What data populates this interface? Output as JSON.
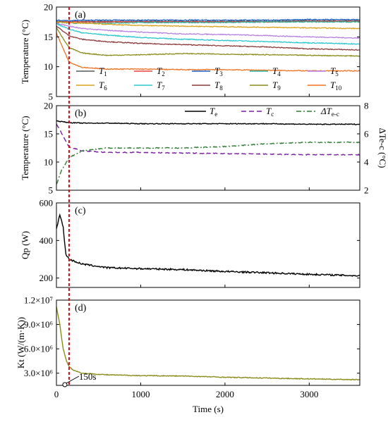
{
  "chart_data": [
    {
      "panel": "(a)",
      "type": "line",
      "ylabel": "Temperature (°C)",
      "xlim": [
        0,
        3600
      ],
      "ylim": [
        5,
        20
      ],
      "yticks": [
        "5",
        "10",
        "15",
        "20"
      ],
      "legend_placement": "bottom (5 columns, 2 rows)",
      "series": [
        {
          "name": "T1",
          "color": "#595959",
          "x": [
            0,
            150,
            300,
            600,
            1000,
            1500,
            2000,
            2500,
            3000,
            3600
          ],
          "y": [
            17.6,
            17.5,
            17.6,
            17.6,
            17.6,
            17.6,
            17.6,
            17.6,
            17.7,
            17.7
          ]
        },
        {
          "name": "T2",
          "color": "#e8413a",
          "x": [
            0,
            150,
            300,
            600,
            1000,
            1500,
            2000,
            2500,
            3000,
            3600
          ],
          "y": [
            17.4,
            17.5,
            17.5,
            17.5,
            17.5,
            17.5,
            17.5,
            17.5,
            17.6,
            17.6
          ]
        },
        {
          "name": "T3",
          "color": "#1f5fbf",
          "x": [
            0,
            150,
            300,
            600,
            1000,
            1500,
            2000,
            2500,
            3000,
            3600
          ],
          "y": [
            17.8,
            17.7,
            17.8,
            17.8,
            17.8,
            17.8,
            17.8,
            17.8,
            17.9,
            17.9
          ]
        },
        {
          "name": "T4",
          "color": "#2bb39e",
          "x": [
            0,
            150,
            300,
            600,
            1000,
            1500,
            2000,
            2500,
            3000,
            3600
          ],
          "y": [
            17.5,
            17.3,
            17.3,
            17.3,
            17.4,
            17.4,
            17.4,
            17.5,
            17.5,
            17.5
          ]
        },
        {
          "name": "T5",
          "color": "#b67fe0",
          "x": [
            0,
            150,
            300,
            600,
            1000,
            1500,
            2000,
            2500,
            3000,
            3600
          ],
          "y": [
            17.3,
            16.8,
            16.4,
            16.1,
            15.8,
            15.5,
            15.4,
            15.2,
            15.0,
            14.8
          ]
        },
        {
          "name": "T6",
          "color": "#d9a21b",
          "x": [
            0,
            150,
            300,
            600,
            1000,
            1500,
            2000,
            2500,
            3000,
            3600
          ],
          "y": [
            17.5,
            17.4,
            17.3,
            17.1,
            16.9,
            16.8,
            16.7,
            16.6,
            16.5,
            16.4
          ]
        },
        {
          "name": "T7",
          "color": "#27c7cf",
          "x": [
            0,
            150,
            300,
            600,
            1000,
            1500,
            2000,
            2500,
            3000,
            3600
          ],
          "y": [
            17.2,
            16.3,
            15.7,
            15.3,
            14.9,
            14.6,
            14.4,
            14.2,
            14.0,
            13.8
          ]
        },
        {
          "name": "T8",
          "color": "#8c3a3a",
          "x": [
            0,
            150,
            300,
            600,
            1000,
            1500,
            2000,
            2500,
            3000,
            3600
          ],
          "y": [
            16.8,
            15.2,
            14.6,
            14.2,
            13.9,
            13.7,
            13.5,
            13.3,
            13.0,
            12.8
          ]
        },
        {
          "name": "T9",
          "color": "#8c8c1c",
          "x": [
            0,
            150,
            300,
            600,
            1000,
            1500,
            2000,
            2500,
            3000,
            3600
          ],
          "y": [
            16.5,
            13.2,
            12.3,
            11.9,
            12.0,
            12.2,
            12.1,
            12.0,
            11.9,
            11.8
          ]
        },
        {
          "name": "T10",
          "color": "#f07020",
          "x": [
            0,
            150,
            300,
            600,
            1000,
            1500,
            2000,
            2500,
            3000,
            3600
          ],
          "y": [
            15.6,
            10.8,
            9.9,
            9.6,
            9.6,
            9.5,
            9.5,
            9.4,
            9.3,
            9.3
          ]
        }
      ]
    },
    {
      "panel": "(b)",
      "type": "line",
      "ylabel": "Temperature (°C)",
      "y2label": "ΔTe-c (°C)",
      "xlim": [
        0,
        3600
      ],
      "ylim": [
        5,
        20
      ],
      "y2lim": [
        2,
        8
      ],
      "yticks": [
        "5",
        "10",
        "15",
        "20"
      ],
      "y2ticks": [
        "2",
        "4",
        "6",
        "8"
      ],
      "legend_placement": "top",
      "series": [
        {
          "name": "Te",
          "axis": "left",
          "style": "solid",
          "color": "#000000",
          "x": [
            0,
            150,
            300,
            600,
            1000,
            1500,
            2000,
            2500,
            3000,
            3600
          ],
          "y": [
            17.3,
            17.0,
            16.9,
            16.9,
            16.8,
            16.8,
            16.8,
            16.8,
            16.7,
            16.7
          ]
        },
        {
          "name": "Tc",
          "axis": "left",
          "style": "dash",
          "color": "#7b1fa2",
          "x": [
            0,
            150,
            300,
            600,
            1000,
            1500,
            2000,
            2500,
            3000,
            3600
          ],
          "y": [
            16.8,
            12.7,
            12.0,
            11.7,
            11.7,
            11.6,
            11.5,
            11.4,
            11.3,
            11.3
          ]
        },
        {
          "name": "ΔTe-c",
          "axis": "right",
          "style": "dashdot",
          "color": "#2e7d32",
          "x": [
            0,
            60,
            150,
            300,
            600,
            1000,
            1500,
            2000,
            2500,
            3000,
            3600
          ],
          "y": [
            2.4,
            3.4,
            4.3,
            4.8,
            5.0,
            5.0,
            5.0,
            5.1,
            5.3,
            5.4,
            5.4
          ]
        }
      ]
    },
    {
      "panel": "(c)",
      "type": "line",
      "ylabel": "Qp (W)",
      "xlim": [
        0,
        3600
      ],
      "ylim": [
        150,
        600
      ],
      "yticks": [
        "200",
        "400",
        "600"
      ],
      "series": [
        {
          "name": "Qp",
          "color": "#000000",
          "x": [
            0,
            40,
            80,
            110,
            150,
            300,
            600,
            1000,
            1500,
            2000,
            2500,
            3000,
            3600
          ],
          "y": [
            460,
            540,
            470,
            330,
            300,
            275,
            255,
            250,
            245,
            235,
            228,
            220,
            212
          ]
        }
      ]
    },
    {
      "panel": "(d)",
      "type": "line",
      "ylabel": "Kt (W/(m·K))",
      "xlabel": "Time (s)",
      "xlim": [
        0,
        3600
      ],
      "ylim": [
        1500000,
        12000000
      ],
      "xticks": [
        "0",
        "1000",
        "2000",
        "3000"
      ],
      "yticks": [
        "3.0×10⁶",
        "6.0×10⁶",
        "9.0×10⁶",
        "1.2×10⁷"
      ],
      "annotation": "150s",
      "annotation_x": 150,
      "series": [
        {
          "name": "Kt",
          "color": "#8c8c1c",
          "x": [
            0,
            40,
            80,
            120,
            150,
            200,
            300,
            600,
            1000,
            1500,
            2000,
            2500,
            3000,
            3600
          ],
          "y": [
            11200000,
            9000000,
            6000000,
            4500000,
            3800000,
            3400000,
            3000000,
            2800000,
            2700000,
            2650000,
            2500000,
            2400000,
            2300000,
            2200000
          ]
        }
      ]
    }
  ],
  "marker": {
    "x": 150,
    "color": "#e8000b",
    "style": "dotted"
  }
}
